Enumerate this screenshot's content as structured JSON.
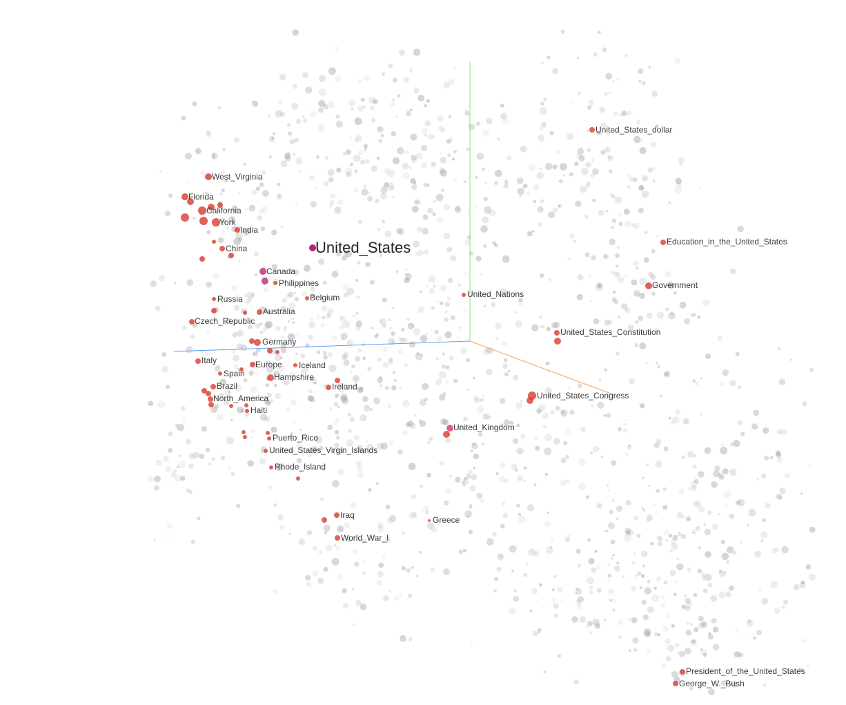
{
  "colors": {
    "background": "#ffffff",
    "neutral_point": "#9e9e9e",
    "near_neighbor": "#d73c2c",
    "selected_point": "#b8226e",
    "canada_point": "#c23f8a",
    "uk_point": "#e0507a",
    "axis_x": "#5a9ff5",
    "axis_y": "#8fe07a",
    "axis_z": "#f5a35a"
  },
  "selected": {
    "label": "United_States"
  },
  "labels": {
    "west_virginia": "West_Virginia",
    "florida": "Florida",
    "california": "California",
    "york": "York",
    "india": "India",
    "china": "China",
    "canada": "Canada",
    "philippines": "Philippines",
    "russia": "Russia",
    "belgium": "Belgium",
    "australia": "Australia",
    "czech_republic": "Czech_Republic",
    "germany": "Germany",
    "italy": "Italy",
    "europe": "Europe",
    "iceland": "Iceland",
    "spain": "Spain",
    "hampshire": "Hampshire",
    "brazil": "Brazil",
    "ireland": "Ireland",
    "north_america": "North_America",
    "haiti": "Haiti",
    "puerto_rico": "Puerto_Rico",
    "us_virgin_islands": "United_States_Virgin_Islands",
    "rhode_island": "Rhode_Island",
    "iraq": "Iraq",
    "world_war_i": "World_War_I",
    "greece": "Greece",
    "united_kingdom": "United_Kingdom",
    "united_nations": "United_Nations",
    "us_dollar": "United_States_dollar",
    "education_us": "Education_in_the_United_States",
    "government": "Government",
    "us_constitution": "United_States_Constitution",
    "us_congress": "United_States_Congress",
    "president_us": "President_of_the_United_States",
    "george_w_bush": "George_W._Bush"
  }
}
